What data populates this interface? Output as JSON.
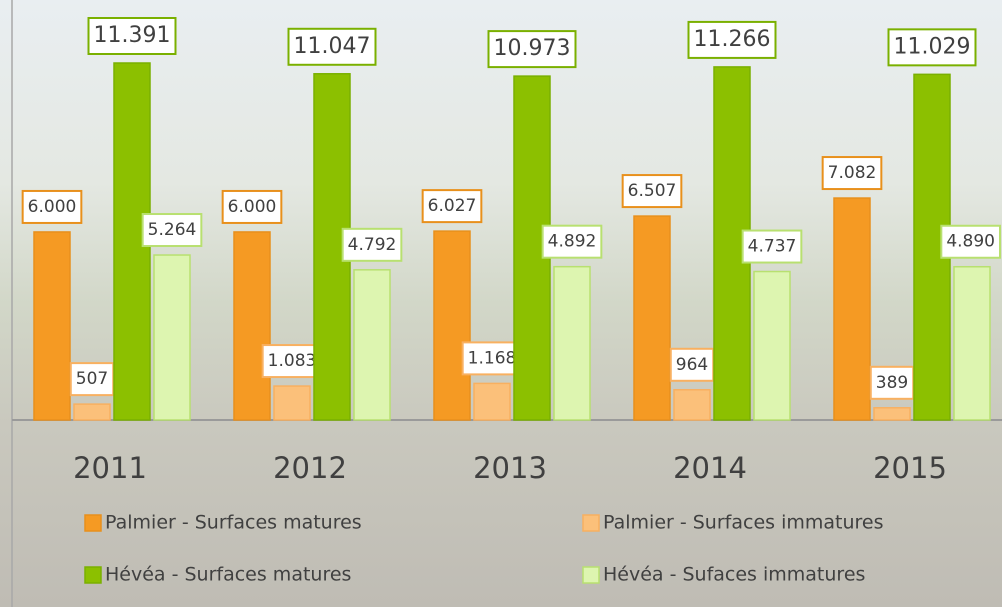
{
  "chart_data": {
    "type": "bar",
    "categories": [
      "2011",
      "2012",
      "2013",
      "2014",
      "2015"
    ],
    "series": [
      {
        "name": "Palmier - Surfaces matures",
        "color": "#f59a23",
        "values": [
          6000,
          6000,
          6027,
          6507,
          7082
        ],
        "value_labels": [
          "6.000",
          "6.000",
          "6.027",
          "6.507",
          "7.082"
        ]
      },
      {
        "name": "Palmier - Surfaces immatures",
        "color": "#fbc07a",
        "values": [
          507,
          1083,
          1168,
          964,
          389
        ],
        "value_labels": [
          "507",
          "1.083",
          "1.168",
          "964",
          "389"
        ]
      },
      {
        "name": "Hévéa - Surfaces matures",
        "color": "#8cc000",
        "values": [
          11391,
          11047,
          10973,
          11266,
          11029
        ],
        "value_labels": [
          "11.391",
          "11.047",
          "10.973",
          "11.266",
          "11.029"
        ]
      },
      {
        "name": "Hévéa - Sufaces immatures",
        "color": "#ddf5b0",
        "values": [
          5264,
          4792,
          4892,
          4737,
          4890
        ],
        "value_labels": [
          "5.264",
          "4.792",
          "4.892",
          "4.737",
          "4.890"
        ]
      }
    ],
    "legend": "bottom"
  }
}
